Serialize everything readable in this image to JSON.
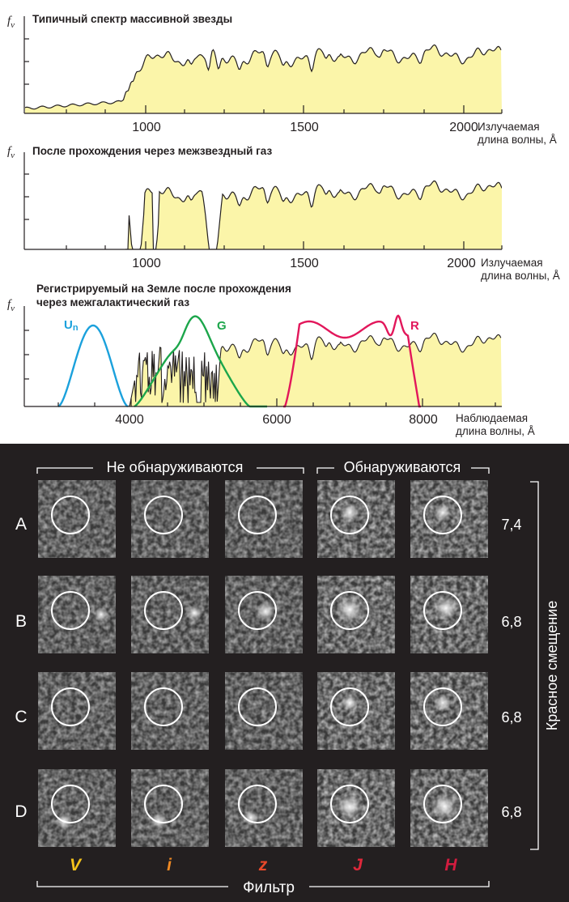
{
  "panels": [
    {
      "title": "Типичный спектр массивной звезды",
      "ylabel": "f",
      "ylabel_sub": "ν",
      "ticks": [
        "1000",
        "1500",
        "2000"
      ],
      "xlabel_1": "Излучаемая",
      "xlabel_2": "длина волны, Å"
    },
    {
      "title": "После прохождения через межзвездный газ",
      "ylabel": "f",
      "ylabel_sub": "ν",
      "ticks": [
        "1000",
        "1500",
        "2000"
      ],
      "xlabel_1": "Излучаемая",
      "xlabel_2": "длина волны, Å"
    },
    {
      "title_1": "Регистрируемый на Земле после прохождения",
      "title_2": "через межгалактический газ",
      "ylabel": "f",
      "ylabel_sub": "ν",
      "ticks": [
        "4000",
        "6000",
        "8000"
      ],
      "xlabel_1": "Наблюдаемая",
      "xlabel_2": "длина волны, Å",
      "filters": [
        {
          "name": "U",
          "sub": "n",
          "color": "#1ba1dc"
        },
        {
          "name": "G",
          "color": "#1ca64b"
        },
        {
          "name": "R",
          "color": "#e2175b"
        }
      ]
    }
  ],
  "chart_data": [
    {
      "type": "area",
      "title": "Типичный спектр массивной звезды",
      "xlabel": "Излучаемая длина волны, Å",
      "ylabel": "fν",
      "xlim": [
        580,
        2140
      ],
      "xticks": [
        1000,
        1500,
        2000
      ],
      "note": "flux low below ~912 Å, rises sharply near 950 Å, plateau to 2100 Å with absorption features",
      "series": [
        {
          "name": "spectrum",
          "color": "#fbf5a9"
        }
      ]
    },
    {
      "type": "area",
      "title": "После прохождения через межзвездный газ",
      "xlabel": "Излучаемая длина волны, Å",
      "ylabel": "fν",
      "xlim": [
        580,
        2140
      ],
      "xticks": [
        1000,
        1500,
        2000
      ],
      "note": "no flux below ~950 Å; absorption troughs near 975, 1025 Å and 1216 Å (Lyα)"
    },
    {
      "type": "line",
      "title": "Регистрируемый на Земле после прохождения через межгалактический газ",
      "xlabel": "Наблюдаемая длина волны, Å",
      "ylabel": "fν",
      "xlim": [
        2800,
        9000
      ],
      "xticks": [
        4000,
        6000,
        8000
      ],
      "series": [
        {
          "name": "Un",
          "color": "#1ba1dc",
          "range": [
            3100,
            4000
          ],
          "peak": 3550
        },
        {
          "name": "G",
          "color": "#1ca64b",
          "range": [
            4000,
            5850
          ],
          "peak": 4900
        },
        {
          "name": "R",
          "color": "#e2175b",
          "range": [
            6000,
            7750
          ],
          "peak": 6900
        }
      ]
    }
  ],
  "grid": {
    "headers": {
      "undetected": "Не обнаруживаются",
      "detected": "Обнаруживаются"
    },
    "rows": [
      {
        "label": "A",
        "z": "7,4"
      },
      {
        "label": "B",
        "z": "6,8"
      },
      {
        "label": "C",
        "z": "6,8"
      },
      {
        "label": "D",
        "z": "6,8"
      }
    ],
    "filters": [
      {
        "name": "V",
        "color": "#f4c21b"
      },
      {
        "name": "i",
        "color": "#f08a24"
      },
      {
        "name": "z",
        "color": "#e8492a"
      },
      {
        "name": "J",
        "color": "#e0283b"
      },
      {
        "name": "H",
        "color": "#d31c3f"
      }
    ],
    "filter_label": "Фильтр",
    "redshift_label": "Красное смещение"
  }
}
